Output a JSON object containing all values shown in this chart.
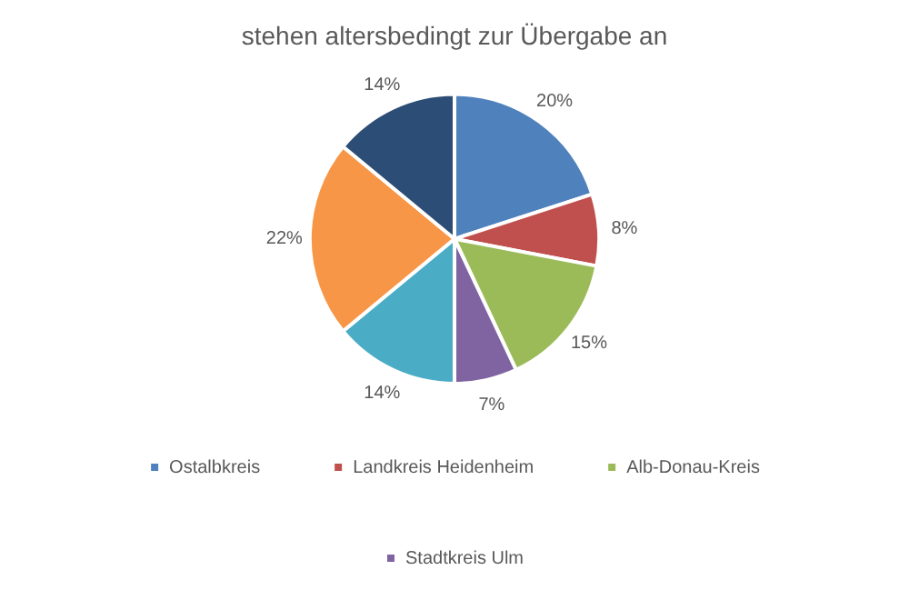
{
  "chart_data": {
    "type": "pie",
    "title": "stehen altersbedingt zur Übergabe an",
    "categories": [
      "Ostalbkreis",
      "Landkreis Heidenheim",
      "Alb-Donau-Kreis",
      "Stadtkreis Ulm",
      null,
      null,
      null
    ],
    "values": [
      20,
      8,
      15,
      7,
      14,
      22,
      14
    ],
    "colors": [
      "#4f81bd",
      "#c0504d",
      "#9bbb59",
      "#8064a2",
      "#4bacc6",
      "#f79646",
      "#2c4d75"
    ],
    "value_labels": [
      "20%",
      "8%",
      "15%",
      "7%",
      "14%",
      "22%",
      "14%"
    ],
    "legend": "bottom"
  }
}
